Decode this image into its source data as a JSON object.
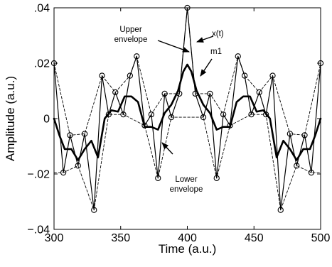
{
  "chart_data": {
    "type": "line",
    "title": "",
    "xlabel": "Time (a.u.)",
    "ylabel": "Amplitude (a.u.)",
    "xlim": [
      300,
      500
    ],
    "ylim": [
      -0.04,
      0.04
    ],
    "xticks": [
      300,
      350,
      400,
      450,
      500
    ],
    "yticks": [
      -0.04,
      -0.02,
      0,
      0.02,
      0.04
    ],
    "grid": false,
    "legend": "none",
    "series": [
      {
        "name": "x(t)",
        "style": "thin-solid-with-circle-markers",
        "color": "#000000",
        "x": [
          300,
          307,
          312,
          318,
          323,
          330,
          336,
          341,
          346,
          352,
          357,
          362,
          368,
          373,
          378,
          383,
          388,
          394,
          400,
          406,
          412,
          417,
          422,
          427,
          432,
          438,
          443,
          448,
          454,
          459,
          464,
          470,
          477,
          482,
          488,
          493,
          500
        ],
        "y": [
          0.02,
          -0.0195,
          -0.006,
          -0.017,
          -0.0055,
          -0.033,
          0.0155,
          0.0015,
          0.0095,
          0.0015,
          0.0155,
          0.0225,
          -0.0025,
          0.0015,
          -0.0215,
          0.009,
          0.0005,
          0.009,
          0.04,
          0.009,
          0.0005,
          0.009,
          -0.0215,
          0.0015,
          -0.0025,
          0.0225,
          0.0155,
          0.0015,
          0.0095,
          0.0015,
          0.0155,
          -0.033,
          -0.0055,
          -0.017,
          -0.006,
          -0.0195,
          0.02
        ]
      },
      {
        "name": "Upper envelope",
        "style": "dashed",
        "color": "#000000",
        "x": [
          300,
          312,
          323,
          336,
          346,
          357,
          362,
          373,
          383,
          394,
          400,
          406,
          417,
          427,
          438,
          443,
          454,
          464,
          477,
          488,
          500
        ],
        "y": [
          0.02,
          -0.006,
          -0.0055,
          0.0155,
          0.0095,
          0.0155,
          0.0225,
          0.0015,
          0.009,
          0.009,
          0.04,
          0.009,
          0.009,
          0.0015,
          0.0225,
          0.0155,
          0.0095,
          0.0155,
          -0.0055,
          -0.006,
          0.02
        ]
      },
      {
        "name": "Lower envelope",
        "style": "dashed",
        "color": "#000000",
        "x": [
          300,
          307,
          318,
          330,
          341,
          352,
          368,
          378,
          388,
          400,
          412,
          422,
          432,
          448,
          459,
          470,
          482,
          493,
          500
        ],
        "y": [
          -0.0195,
          -0.0195,
          -0.017,
          -0.033,
          0.0015,
          0.0015,
          -0.0025,
          -0.0215,
          0.0005,
          0.0005,
          0.0005,
          -0.0215,
          -0.0025,
          0.0015,
          0.0015,
          -0.033,
          -0.017,
          -0.0195,
          -0.0195
        ]
      },
      {
        "name": "m1",
        "style": "thick-solid",
        "color": "#000000",
        "x": [
          300,
          304,
          308,
          313,
          318,
          323,
          328,
          333,
          338,
          343,
          348,
          353,
          358,
          363,
          368,
          373,
          378,
          383,
          388,
          393,
          397,
          400,
          403,
          407,
          412,
          417,
          422,
          427,
          432,
          437,
          442,
          447,
          452,
          457,
          462,
          467,
          472,
          477,
          482,
          487,
          492,
          496,
          500
        ],
        "y": [
          0.0,
          -0.006,
          -0.011,
          -0.011,
          -0.015,
          -0.011,
          -0.008,
          -0.014,
          0.0,
          0.003,
          0.0025,
          0.008,
          0.008,
          0.006,
          -0.003,
          -0.003,
          -0.004,
          0.002,
          0.005,
          0.01,
          0.017,
          0.0195,
          0.017,
          0.01,
          0.005,
          0.002,
          -0.004,
          -0.003,
          -0.003,
          0.006,
          0.008,
          0.008,
          0.0025,
          0.003,
          0.0,
          -0.014,
          -0.008,
          -0.011,
          -0.015,
          -0.011,
          -0.011,
          -0.006,
          0.0
        ]
      }
    ],
    "annotations": [
      {
        "id": "upper",
        "lines": [
          "Upper",
          "envelope"
        ]
      },
      {
        "id": "xt",
        "lines": [
          "x(t)"
        ]
      },
      {
        "id": "m1",
        "lines": [
          "m1"
        ]
      },
      {
        "id": "lower",
        "lines": [
          "Lower",
          "envelope"
        ]
      }
    ]
  }
}
